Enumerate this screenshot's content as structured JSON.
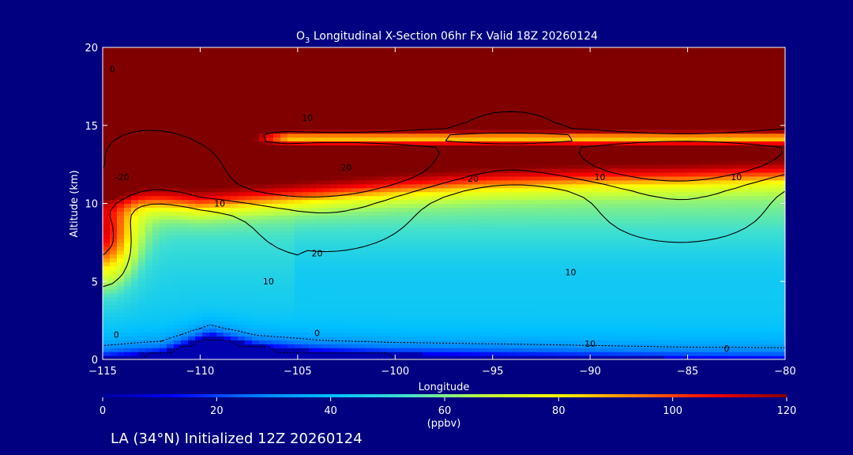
{
  "chart_data": {
    "type": "heatmap",
    "title_prefix": "O",
    "title_subscript": "3",
    "title_rest": " Longitudinal X-Section 06hr  Fx Valid 18Z 20260124",
    "xlabel": "Longitude",
    "ylabel": "Altitude (km)",
    "xlim": [
      -115,
      -80
    ],
    "ylim": [
      0,
      20
    ],
    "x_ticks": [
      -115,
      -110,
      -105,
      -100,
      -95,
      -90,
      -85,
      -80
    ],
    "x_tick_labels": [
      "−115",
      "−110",
      "−105",
      "−100",
      "−95",
      "−90",
      "−85",
      "−80"
    ],
    "y_ticks": [
      0,
      5,
      10,
      15,
      20
    ],
    "y_tick_labels": [
      "0",
      "5",
      "10",
      "15",
      "20"
    ],
    "colorbar": {
      "min": 0,
      "max": 120,
      "ticks": [
        0,
        20,
        40,
        60,
        80,
        100,
        120
      ],
      "tick_labels": [
        "0",
        "20",
        "40",
        "60",
        "80",
        "100",
        "120"
      ],
      "unit_label": "(ppbv)",
      "colors": [
        "#0000a0",
        "#0000ff",
        "#0080ff",
        "#00c0ff",
        "#40e0d0",
        "#c0ff40",
        "#ffff00",
        "#ff8000",
        "#ff0000",
        "#800000"
      ]
    },
    "field": {
      "tropopause_height_by_lon": [
        [
          -115,
          10.4
        ],
        [
          -110,
          9.9
        ],
        [
          -105,
          10.4
        ],
        [
          -100,
          10.9
        ],
        [
          -95,
          11.3
        ],
        [
          -90,
          11.5
        ],
        [
          -85,
          11.6
        ],
        [
          -80,
          11.8
        ]
      ],
      "upper_stratosphere_ppbv": 125,
      "stable_layer": {
        "lon_start": -107.5,
        "lon_end": -80,
        "alt": 14.2,
        "min_ppbv": 85
      },
      "surface_ozone_ppbv": 12,
      "free_troposphere_ppbv": 42,
      "terrain_by_lon": [
        [
          -115,
          0.2
        ],
        [
          -112,
          0.5
        ],
        [
          -109.5,
          1.6
        ],
        [
          -107,
          0.9
        ],
        [
          -104,
          0.6
        ],
        [
          -100,
          0.4
        ],
        [
          -95,
          0.3
        ],
        [
          -90,
          0.2
        ],
        [
          -85,
          0.1
        ],
        [
          -80,
          0.05
        ]
      ]
    },
    "contour_labels": [
      {
        "text": "0",
        "lon": -114.5,
        "alt": 18.4
      },
      {
        "text": "10",
        "lon": -104.5,
        "alt": 15.3
      },
      {
        "text": "20",
        "lon": -102.5,
        "alt": 12.1
      },
      {
        "text": "20",
        "lon": -96,
        "alt": 11.4
      },
      {
        "text": "10",
        "lon": -89.5,
        "alt": 11.5
      },
      {
        "text": "10",
        "lon": -82.5,
        "alt": 11.5
      },
      {
        "text": "10",
        "lon": -109,
        "alt": 9.8
      },
      {
        "text": "20",
        "lon": -104,
        "alt": 6.6
      },
      {
        "text": "10",
        "lon": -106.5,
        "alt": 4.8
      },
      {
        "text": "10",
        "lon": -91,
        "alt": 5.4
      },
      {
        "text": "0",
        "lon": -104,
        "alt": 1.5
      },
      {
        "text": "10",
        "lon": -90,
        "alt": 0.8
      },
      {
        "text": "0",
        "lon": -83,
        "alt": 0.5
      },
      {
        "text": "0",
        "lon": -114.3,
        "alt": 1.4
      },
      {
        "text": "-20",
        "lon": -114,
        "alt": 11.5
      }
    ]
  },
  "footer": {
    "text": "LA (34°N) Initialized 12Z 20260124"
  },
  "colors": {
    "background": "#000080",
    "text": "#ffffff",
    "contour": "#000000"
  }
}
